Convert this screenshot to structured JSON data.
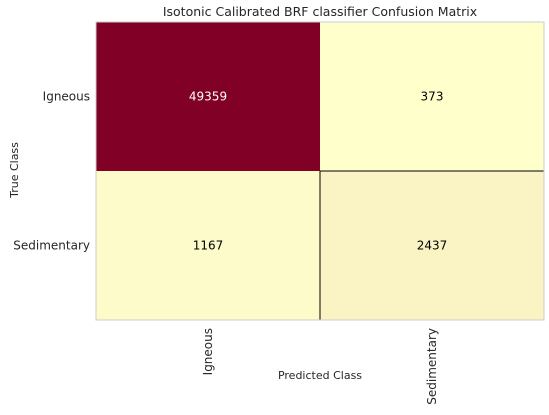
{
  "chart_data": {
    "type": "heatmap",
    "title": "Isotonic Calibrated BRF classifier Confusion Matrix",
    "xlabel": "Predicted Class",
    "ylabel": "True Class",
    "x_categories": [
      "Igneous",
      "Sedimentary"
    ],
    "y_categories": [
      "Igneous",
      "Sedimentary"
    ],
    "values": [
      [
        49359,
        373
      ],
      [
        1167,
        2437
      ]
    ],
    "colors": {
      "high": "#800026",
      "low": "#ffffcc",
      "frame": "#cccccc",
      "divider": "#000000",
      "text_on_dark": "#ffffff",
      "text_on_light": "#000000"
    },
    "grid": false
  }
}
